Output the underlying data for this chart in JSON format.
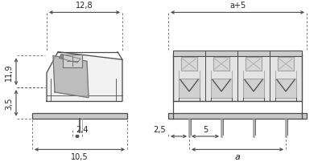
{
  "bg_color": "#ffffff",
  "line_color": "#4a4a4a",
  "light_gray": "#c8c8c8",
  "mid_gray": "#a0a0a0",
  "dark_gray": "#707070",
  "dim_line_color": "#888888",
  "left_panel": {
    "dim_12_8": "12,8",
    "dim_11_9": "11,9",
    "dim_3_5": "3,5",
    "dim_2_4": "2,4",
    "dim_10_5": "10,5"
  },
  "right_panel": {
    "dim_a5": "a+5",
    "dim_2_5": "2,5",
    "dim_5": "5",
    "dim_a": "a"
  }
}
